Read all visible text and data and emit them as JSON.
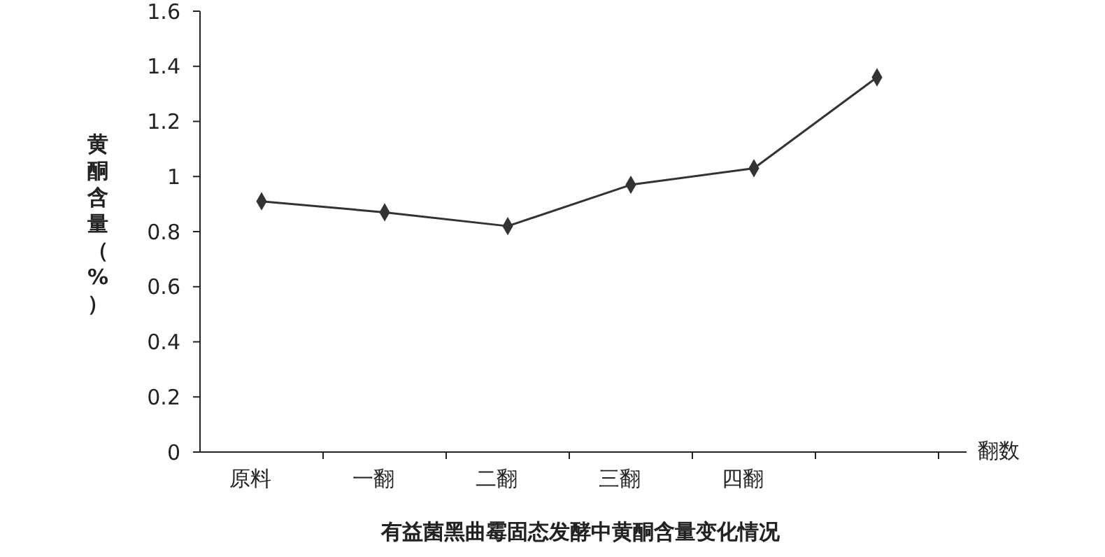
{
  "chart_data": {
    "type": "line",
    "title": "有益菌黑曲霉固态发酵中黄酮含量变化情况",
    "xlabel": "翻数",
    "ylabel": "黄酮含量（%）",
    "categories": [
      "原料",
      "一翻",
      "二翻",
      "三翻",
      "四翻",
      null
    ],
    "series": [
      {
        "color": "#333333",
        "values": [
          0.91,
          0.87,
          0.82,
          0.97,
          1.03,
          1.36
        ]
      }
    ],
    "ylim": [
      0,
      1.6
    ],
    "yticks": [
      0,
      0.2,
      0.4,
      0.6,
      0.8,
      1,
      1.2,
      1.4,
      1.6
    ],
    "grid": false,
    "marker": "diamond",
    "line_style": "solid"
  }
}
